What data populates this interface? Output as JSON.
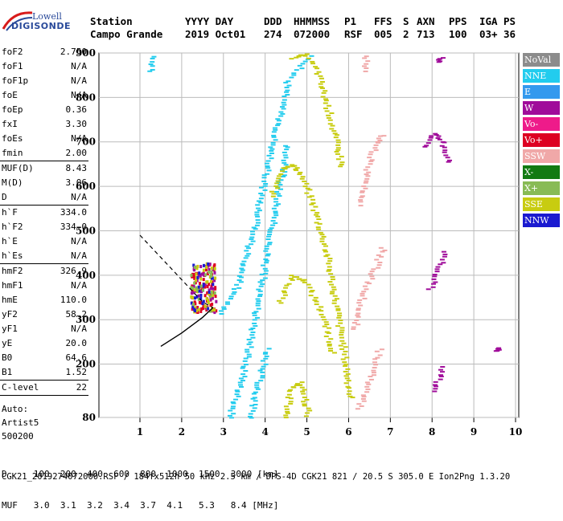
{
  "logo": {
    "line1": "Lowell",
    "line2": "DIGISONDE"
  },
  "header": {
    "labels": [
      "Station",
      "YYYY DAY",
      "DDD",
      "HHMMSS",
      "P1",
      "FFS",
      "S",
      "AXN",
      "PPS",
      "IGA",
      "PS"
    ],
    "values": [
      "Campo Grande",
      "2019 Oct01",
      "274",
      "072000",
      "RSF",
      "005",
      "2",
      "713",
      "100",
      "03+",
      "36"
    ]
  },
  "params": {
    "group1": [
      {
        "k": "foF2",
        "v": "2.750"
      },
      {
        "k": "foF1",
        "v": "N/A"
      },
      {
        "k": "foF1p",
        "v": "N/A"
      },
      {
        "k": "foE",
        "v": "N/A"
      },
      {
        "k": "foEp",
        "v": "0.36"
      },
      {
        "k": "fxI",
        "v": "3.30"
      },
      {
        "k": "foEs",
        "v": "N/A"
      },
      {
        "k": "fmin",
        "v": "2.00"
      }
    ],
    "group2": [
      {
        "k": "MUF(D)",
        "v": "8.43"
      },
      {
        "k": "M(D)",
        "v": "3.06"
      },
      {
        "k": "D",
        "v": "N/A"
      }
    ],
    "group3": [
      {
        "k": "h`F",
        "v": "334.0"
      },
      {
        "k": "h`F2",
        "v": "334.0"
      },
      {
        "k": "h`E",
        "v": "N/A"
      },
      {
        "k": "h`Es",
        "v": "N/A"
      }
    ],
    "group4": [
      {
        "k": "hmF2",
        "v": "326.9"
      },
      {
        "k": "hmF1",
        "v": "N/A"
      },
      {
        "k": "hmE",
        "v": "110.0"
      },
      {
        "k": "yF2",
        "v": "58.2"
      },
      {
        "k": "yF1",
        "v": "N/A"
      },
      {
        "k": "yE",
        "v": "20.0"
      },
      {
        "k": "B0",
        "v": "64.6"
      },
      {
        "k": "B1",
        "v": "1.52"
      }
    ],
    "group5": [
      {
        "k": "C-level",
        "v": "22"
      }
    ],
    "auto": [
      "Auto:",
      "Artist5",
      "500200"
    ]
  },
  "legend": [
    {
      "label": "NoVal",
      "color": "#8c8c8c"
    },
    {
      "label": "NNE",
      "color": "#22ccee"
    },
    {
      "label": "E",
      "color": "#3399ee"
    },
    {
      "label": "W",
      "color": "#a00c9a"
    },
    {
      "label": "Vo-",
      "color": "#ee1b8a"
    },
    {
      "label": "Vo+",
      "color": "#dd0022"
    },
    {
      "label": "SSW",
      "color": "#f0a8a8"
    },
    {
      "label": "X-",
      "color": "#127a12"
    },
    {
      "label": "X+",
      "color": "#88bb55"
    },
    {
      "label": "SSE",
      "color": "#c8cc10"
    },
    {
      "label": "NNW",
      "color": "#1a1ad0"
    }
  ],
  "footer": {
    "d_row": "D     100  200  400  600  800  1000  1500  3000 [km]",
    "muf_row": "MUF   3.0  3.1  3.2  3.4  3.7  4.1   5.3   8.4 [MHz]",
    "info": "CGK21_2019274072000.RSF / 184fx512h 50 kHz 2.5 km / DPS-4D CGK21 821 / 20.5 S 305.0 E Ion2Png 1.3.20"
  },
  "chart_data": {
    "type": "scatter",
    "title": "",
    "xlabel": "",
    "ylabel": "",
    "xlim": [
      1,
      10
    ],
    "ylim": [
      80,
      900
    ],
    "xticks": [
      1,
      2,
      3,
      4,
      5,
      6,
      7,
      8,
      9,
      10
    ],
    "yticks": [
      80,
      200,
      300,
      400,
      500,
      600,
      700,
      800,
      900
    ],
    "grid": true,
    "series": [
      {
        "name": "NNE",
        "color": "#22ccee",
        "traces": [
          {
            "x": [
              2.9,
              3.3,
              3.7,
              4.1,
              4.5,
              5.1
            ],
            "y": [
              315,
              380,
              510,
              680,
              840,
              900
            ]
          },
          {
            "x": [
              3.1,
              3.4,
              3.7,
              4.0,
              4.3,
              4.5
            ],
            "y": [
              80,
              170,
              300,
              450,
              600,
              700
            ]
          },
          {
            "x": [
              3.6,
              3.8,
              4.0
            ],
            "y": [
              80,
              160,
              240
            ]
          },
          {
            "x": [
              1.2,
              1.25
            ],
            "y": [
              860,
              900
            ]
          }
        ]
      },
      {
        "name": "SSE",
        "color": "#c8cc10",
        "traces": [
          {
            "x": [
              4.1,
              4.4,
              4.6,
              4.8,
              5.1,
              5.4
            ],
            "y": [
              580,
              640,
              650,
              630,
              560,
              460
            ]
          },
          {
            "x": [
              5.4,
              5.6,
              5.8,
              6.0
            ],
            "y": [
              460,
              360,
              250,
              120
            ]
          },
          {
            "x": [
              4.3,
              4.6,
              4.9,
              5.3,
              5.6
            ],
            "y": [
              340,
              400,
              390,
              320,
              220
            ]
          },
          {
            "x": [
              4.4,
              4.6,
              4.8,
              5.0
            ],
            "y": [
              80,
              150,
              160,
              80
            ]
          },
          {
            "x": [
              4.6,
              4.9,
              5.2,
              5.5,
              5.8
            ],
            "y": [
              890,
              900,
              860,
              760,
              640
            ]
          }
        ]
      },
      {
        "name": "SSW",
        "color": "#f0a8a8",
        "traces": [
          {
            "x": [
              6.2,
              6.4,
              6.6,
              6.8
            ],
            "y": [
              560,
              640,
              700,
              720
            ]
          },
          {
            "x": [
              6.1,
              6.3,
              6.6,
              6.8
            ],
            "y": [
              280,
              360,
              420,
              470
            ]
          },
          {
            "x": [
              6.2,
              6.4,
              6.6,
              6.7
            ],
            "y": [
              100,
              150,
              200,
              240
            ]
          },
          {
            "x": [
              6.3,
              6.4
            ],
            "y": [
              860,
              900
            ]
          }
        ]
      },
      {
        "name": "W",
        "color": "#a00c9a",
        "traces": [
          {
            "x": [
              7.8,
              8.0,
              8.2,
              8.4
            ],
            "y": [
              690,
              720,
              700,
              650
            ]
          },
          {
            "x": [
              7.9,
              8.1,
              8.3
            ],
            "y": [
              370,
              420,
              460
            ]
          },
          {
            "x": [
              8.0,
              8.2
            ],
            "y": [
              140,
              200
            ]
          },
          {
            "x": [
              8.1,
              8.2
            ],
            "y": [
              880,
              895
            ]
          },
          {
            "x": [
              9.5,
              9.6
            ],
            "y": [
              230,
              240
            ]
          }
        ]
      }
    ],
    "profile": {
      "x": [
        1.5,
        2.0,
        2.5,
        2.75
      ],
      "y": [
        240,
        270,
        305,
        327
      ]
    },
    "profile_extension": {
      "x": [
        1.0,
        1.5,
        2.0,
        2.5,
        2.75
      ],
      "y": [
        490,
        440,
        390,
        340,
        327
      ]
    }
  }
}
